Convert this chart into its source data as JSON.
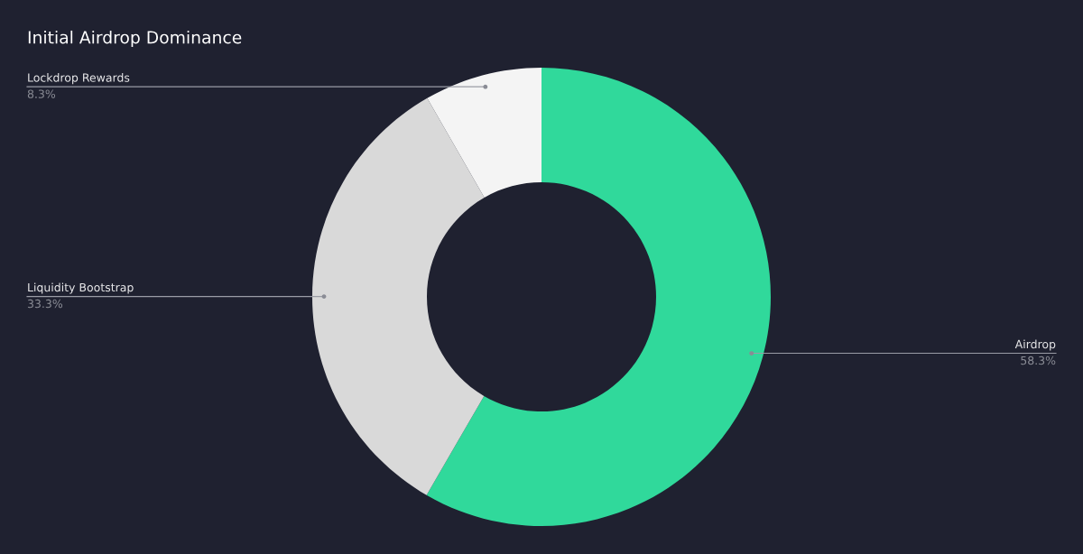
{
  "chart_data": {
    "type": "donut",
    "title": "Initial Airdrop Dominance",
    "categories": [
      "Airdrop",
      "Liquidity Bootstrap",
      "Lockdrop Rewards"
    ],
    "values": [
      58.3,
      33.3,
      8.3
    ],
    "value_labels": [
      "58.3%",
      "33.3%",
      "8.3%"
    ],
    "colors": [
      "#30d99b",
      "#d9d9d9",
      "#f4f4f4"
    ],
    "legend": false
  }
}
